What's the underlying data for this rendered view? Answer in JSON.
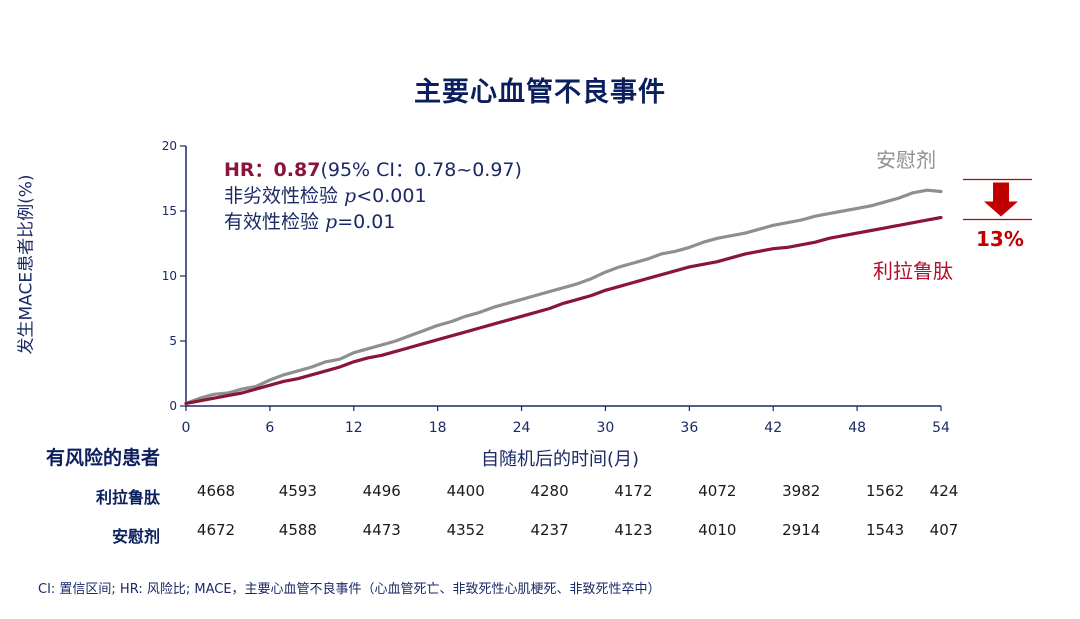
{
  "chart_data": {
    "type": "line",
    "title": "主要心血管不良事件",
    "xlabel": "自随机后的时间(月)",
    "ylabel": "发生MACE患者比例(%)",
    "xlim": [
      0,
      54
    ],
    "ylim": [
      0,
      20
    ],
    "xticks": [
      0,
      6,
      12,
      18,
      24,
      30,
      36,
      42,
      48,
      54
    ],
    "yticks": [
      0,
      5,
      10,
      15,
      20
    ],
    "grid": false,
    "series": [
      {
        "name": "安慰剂",
        "color": "#8f8f8f",
        "x": [
          0,
          1,
          2,
          3,
          4,
          5,
          6,
          7,
          8,
          9,
          10,
          11,
          12,
          13,
          14,
          15,
          16,
          17,
          18,
          19,
          20,
          21,
          22,
          23,
          24,
          25,
          26,
          27,
          28,
          29,
          30,
          31,
          32,
          33,
          34,
          35,
          36,
          37,
          38,
          39,
          40,
          41,
          42,
          43,
          44,
          45,
          46,
          47,
          48,
          49,
          50,
          51,
          52,
          53,
          54
        ],
        "y": [
          0.2,
          0.6,
          0.9,
          1.0,
          1.3,
          1.5,
          2.0,
          2.4,
          2.7,
          3.0,
          3.4,
          3.6,
          4.1,
          4.4,
          4.7,
          5.0,
          5.4,
          5.8,
          6.2,
          6.5,
          6.9,
          7.2,
          7.6,
          7.9,
          8.2,
          8.5,
          8.8,
          9.1,
          9.4,
          9.8,
          10.3,
          10.7,
          11.0,
          11.3,
          11.7,
          11.9,
          12.2,
          12.6,
          12.9,
          13.1,
          13.3,
          13.6,
          13.9,
          14.1,
          14.3,
          14.6,
          14.8,
          15.0,
          15.2,
          15.4,
          15.7,
          16.0,
          16.4,
          16.6,
          16.5
        ]
      },
      {
        "name": "利拉鲁肽",
        "color": "#8a1538",
        "x": [
          0,
          1,
          2,
          3,
          4,
          5,
          6,
          7,
          8,
          9,
          10,
          11,
          12,
          13,
          14,
          15,
          16,
          17,
          18,
          19,
          20,
          21,
          22,
          23,
          24,
          25,
          26,
          27,
          28,
          29,
          30,
          31,
          32,
          33,
          34,
          35,
          36,
          37,
          38,
          39,
          40,
          41,
          42,
          43,
          44,
          45,
          46,
          47,
          48,
          49,
          50,
          51,
          52,
          53,
          54
        ],
        "y": [
          0.2,
          0.4,
          0.6,
          0.8,
          1.0,
          1.3,
          1.6,
          1.9,
          2.1,
          2.4,
          2.7,
          3.0,
          3.4,
          3.7,
          3.9,
          4.2,
          4.5,
          4.8,
          5.1,
          5.4,
          5.7,
          6.0,
          6.3,
          6.6,
          6.9,
          7.2,
          7.5,
          7.9,
          8.2,
          8.5,
          8.9,
          9.2,
          9.5,
          9.8,
          10.1,
          10.4,
          10.7,
          10.9,
          11.1,
          11.4,
          11.7,
          11.9,
          12.1,
          12.2,
          12.4,
          12.6,
          12.9,
          13.1,
          13.3,
          13.5,
          13.7,
          13.9,
          14.1,
          14.3,
          14.5
        ]
      }
    ],
    "annotations": {
      "hr_label": "HR：",
      "hr_value": "0.87",
      "ci_text": "(95% CI：0.78~0.97)",
      "noninferiority_prefix": "非劣效性检验 ",
      "noninferiority_p_symbol": "p",
      "noninferiority_p_value": "<0.001",
      "superiority_prefix": "有效性检验 ",
      "superiority_p_symbol": "p",
      "superiority_p_value": "=0.01",
      "reduction": "13%",
      "reduction_color": "#c00000"
    }
  },
  "risk_table": {
    "header": "有风险的患者",
    "rows": [
      {
        "label": "利拉鲁肽",
        "values": [
          "4668",
          "4593",
          "4496",
          "4400",
          "4280",
          "4172",
          "4072",
          "3982",
          "1562",
          "424"
        ]
      },
      {
        "label": "安慰剂",
        "values": [
          "4672",
          "4588",
          "4473",
          "4352",
          "4237",
          "4123",
          "4010",
          "2914",
          "1543",
          "407"
        ]
      }
    ]
  },
  "footnote": "CI: 置信区间; HR: 风险比; MACE，主要心血管不良事件（心血管死亡、非致死性心肌梗死、非致死性卒中）"
}
